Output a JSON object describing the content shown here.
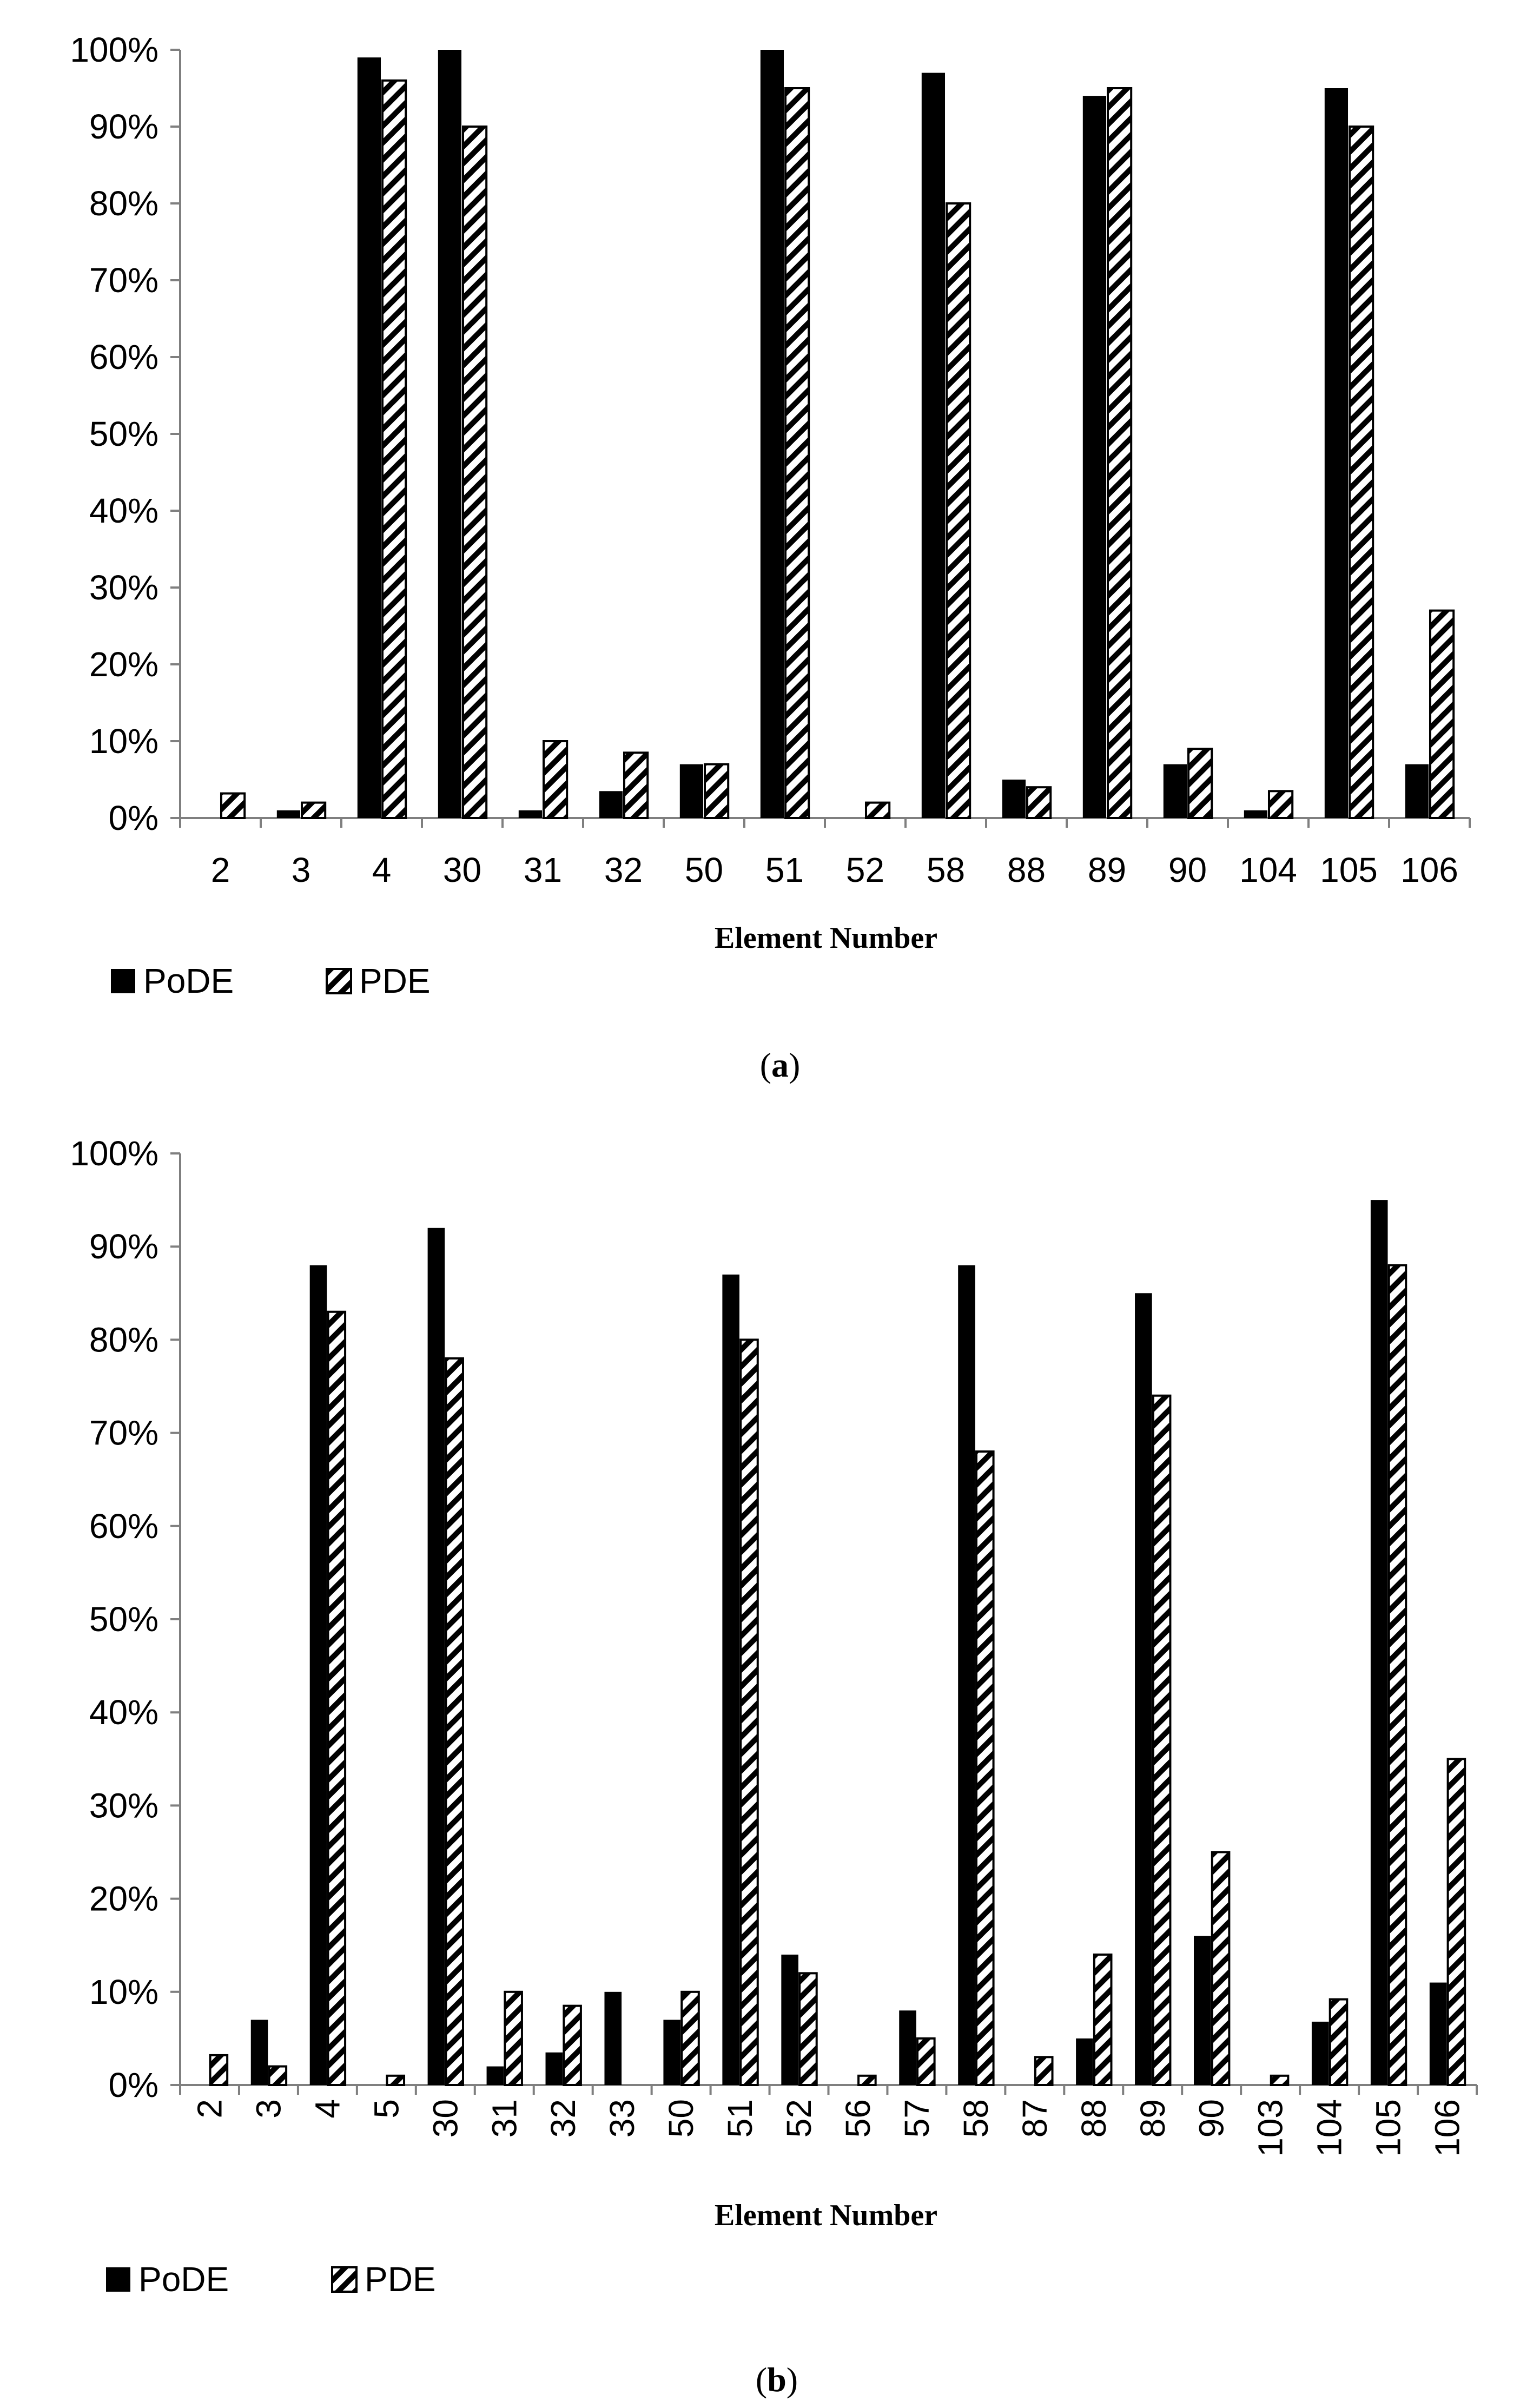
{
  "chart_data": [
    {
      "type": "bar",
      "caption_letter": "a",
      "xlabel": "Element Number",
      "ylabel": "",
      "ylim": [
        0,
        100
      ],
      "yticks": [
        "0%",
        "10%",
        "20%",
        "30%",
        "40%",
        "50%",
        "60%",
        "70%",
        "80%",
        "90%",
        "100%"
      ],
      "legend_position": "bottom-left",
      "categories": [
        "2",
        "3",
        "4",
        "30",
        "31",
        "32",
        "50",
        "51",
        "52",
        "58",
        "88",
        "89",
        "90",
        "104",
        "105",
        "106"
      ],
      "series": [
        {
          "name": "PoDE",
          "fill": "solid",
          "color": "#000000",
          "values": [
            0,
            1,
            99,
            100,
            1,
            3.5,
            7,
            100,
            0,
            97,
            5,
            94,
            7,
            1,
            95,
            7
          ]
        },
        {
          "name": "PDE",
          "fill": "hatched",
          "color": "#000000",
          "values": [
            3.2,
            2,
            96,
            90,
            10,
            8.5,
            7,
            95,
            2,
            80,
            4,
            95,
            9,
            3.5,
            90,
            27
          ]
        }
      ]
    },
    {
      "type": "bar",
      "caption_letter": "b",
      "xlabel": "Element Number",
      "ylabel": "",
      "ylim": [
        0,
        100
      ],
      "yticks": [
        "0%",
        "10%",
        "20%",
        "30%",
        "40%",
        "50%",
        "60%",
        "70%",
        "80%",
        "90%",
        "100%"
      ],
      "legend_position": "bottom-left",
      "categories": [
        "2",
        "3",
        "4",
        "5",
        "30",
        "31",
        "32",
        "33",
        "50",
        "51",
        "52",
        "56",
        "57",
        "58",
        "87",
        "88",
        "89",
        "90",
        "103",
        "104",
        "105",
        "106"
      ],
      "series": [
        {
          "name": "PoDE",
          "fill": "solid",
          "color": "#000000",
          "values": [
            0,
            7,
            88,
            0,
            92,
            2,
            3.5,
            10,
            7,
            87,
            14,
            0,
            8,
            88,
            0,
            5,
            85,
            16,
            0,
            6.8,
            95,
            11
          ]
        },
        {
          "name": "PDE",
          "fill": "hatched",
          "color": "#000000",
          "values": [
            3.2,
            2,
            83,
            1,
            78,
            10,
            8.5,
            0,
            10,
            80,
            12,
            1,
            5,
            68,
            3,
            14,
            74,
            25,
            1,
            9.2,
            88,
            35
          ]
        }
      ]
    }
  ]
}
